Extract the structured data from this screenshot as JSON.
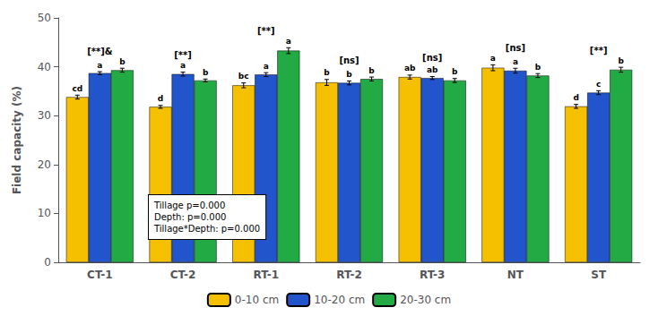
{
  "chart_data": {
    "type": "bar",
    "ylabel": "Field capacity (%)",
    "categories": [
      "CT-1",
      "CT-2",
      "RT-1",
      "RT-2",
      "RT-3",
      "NT",
      "ST"
    ],
    "series": [
      {
        "name": "0-10 cm",
        "color": "#F5C000",
        "values": [
          33.8,
          31.8,
          36.2,
          36.8,
          37.9,
          39.8,
          31.9
        ],
        "errors": [
          0.4,
          0.3,
          0.5,
          0.6,
          0.4,
          0.6,
          0.4
        ],
        "letters": [
          "cd",
          "d",
          "bc",
          "b",
          "ab",
          "a",
          "d"
        ]
      },
      {
        "name": "10-20 cm",
        "color": "#2255CC",
        "values": [
          38.7,
          38.5,
          38.4,
          36.7,
          37.7,
          39.2,
          34.7
        ],
        "errors": [
          0.3,
          0.4,
          0.4,
          0.4,
          0.3,
          0.5,
          0.4
        ],
        "letters": [
          "a",
          "a",
          "a",
          "b",
          "ab",
          "a",
          "c"
        ]
      },
      {
        "name": "20-30 cm",
        "color": "#22AA44",
        "values": [
          39.3,
          37.2,
          43.3,
          37.5,
          37.2,
          38.2,
          39.4
        ],
        "errors": [
          0.4,
          0.3,
          0.6,
          0.4,
          0.4,
          0.4,
          0.5
        ],
        "letters": [
          "b",
          "b",
          "a",
          "b",
          "b",
          "b",
          "b"
        ]
      }
    ],
    "group_labels": [
      "[**]&",
      "[**]",
      "[**]",
      "[ns]",
      "[ns]",
      "[ns]",
      "[**]"
    ],
    "annotation": "Tillage p=0.000\nDepth: p=0.000\nTillage*Depth: p=0.000",
    "ylim": [
      0,
      50
    ],
    "yticks": [
      0,
      10,
      20,
      30,
      40,
      50
    ],
    "legend": "bottom",
    "grid": false
  }
}
